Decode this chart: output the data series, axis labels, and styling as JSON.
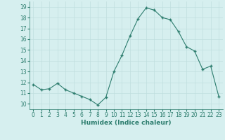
{
  "x": [
    0,
    1,
    2,
    3,
    4,
    5,
    6,
    7,
    8,
    9,
    10,
    11,
    12,
    13,
    14,
    15,
    16,
    17,
    18,
    19,
    20,
    21,
    22,
    23
  ],
  "y": [
    11.8,
    11.3,
    11.4,
    11.9,
    11.3,
    11.0,
    10.7,
    10.4,
    9.9,
    10.6,
    13.0,
    14.5,
    16.3,
    17.9,
    18.9,
    18.7,
    18.0,
    17.8,
    16.7,
    15.3,
    14.9,
    13.2,
    13.5,
    10.7
  ],
  "xlabel": "Humidex (Indice chaleur)",
  "ylabel": "",
  "xlim": [
    -0.5,
    23.5
  ],
  "ylim": [
    9.5,
    19.5
  ],
  "yticks": [
    10,
    11,
    12,
    13,
    14,
    15,
    16,
    17,
    18,
    19
  ],
  "xticks": [
    0,
    1,
    2,
    3,
    4,
    5,
    6,
    7,
    8,
    9,
    10,
    11,
    12,
    13,
    14,
    15,
    16,
    17,
    18,
    19,
    20,
    21,
    22,
    23
  ],
  "line_color": "#2d7d6e",
  "marker_color": "#2d7d6e",
  "bg_color": "#d6efef",
  "grid_color": "#c0dede",
  "label_color": "#2d7d6e",
  "tick_color": "#2d7d6e",
  "xlabel_fontsize": 6.5,
  "tick_fontsize": 5.5
}
